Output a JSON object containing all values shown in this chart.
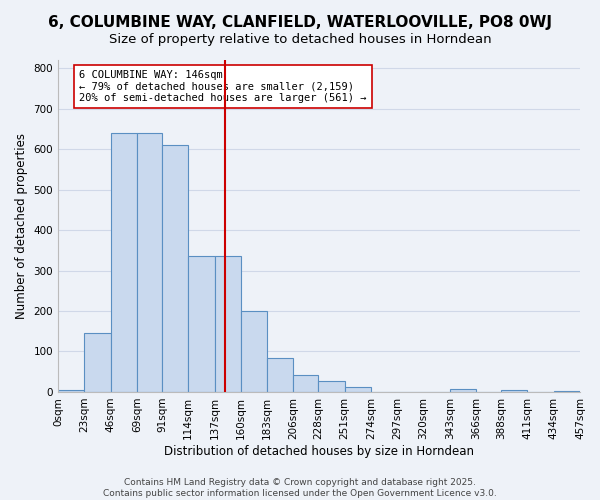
{
  "title": "6, COLUMBINE WAY, CLANFIELD, WATERLOOVILLE, PO8 0WJ",
  "subtitle": "Size of property relative to detached houses in Horndean",
  "xlabel": "Distribution of detached houses by size in Horndean",
  "ylabel": "Number of detached properties",
  "bin_edges": [
    0,
    23,
    46,
    69,
    91,
    114,
    137,
    160,
    183,
    206,
    228,
    251,
    274,
    297,
    320,
    343,
    366,
    388,
    411,
    434,
    457
  ],
  "bin_labels": [
    "0sqm",
    "23sqm",
    "46sqm",
    "69sqm",
    "91sqm",
    "114sqm",
    "137sqm",
    "160sqm",
    "183sqm",
    "206sqm",
    "228sqm",
    "251sqm",
    "274sqm",
    "297sqm",
    "320sqm",
    "343sqm",
    "366sqm",
    "388sqm",
    "411sqm",
    "434sqm",
    "457sqm"
  ],
  "bar_heights": [
    5,
    145,
    640,
    640,
    610,
    335,
    335,
    200,
    85,
    42,
    27,
    12,
    0,
    0,
    0,
    7,
    0,
    5,
    0,
    2
  ],
  "bar_color": "#c9d9ee",
  "bar_edgecolor": "#5a8fc2",
  "bar_linewidth": 0.8,
  "vline_x": 146,
  "vline_color": "#cc0000",
  "ylim": [
    0,
    820
  ],
  "yticks": [
    0,
    100,
    200,
    300,
    400,
    500,
    600,
    700,
    800
  ],
  "annotation_box_text": "6 COLUMBINE WAY: 146sqm\n← 79% of detached houses are smaller (2,159)\n20% of semi-detached houses are larger (561) →",
  "footer_text": "Contains HM Land Registry data © Crown copyright and database right 2025.\nContains public sector information licensed under the Open Government Licence v3.0.",
  "bg_color": "#eef2f8",
  "grid_color": "#d0d8e8",
  "title_fontsize": 11,
  "subtitle_fontsize": 9.5,
  "axis_label_fontsize": 8.5,
  "tick_fontsize": 7.5,
  "annotation_fontsize": 7.5,
  "footer_fontsize": 6.5
}
